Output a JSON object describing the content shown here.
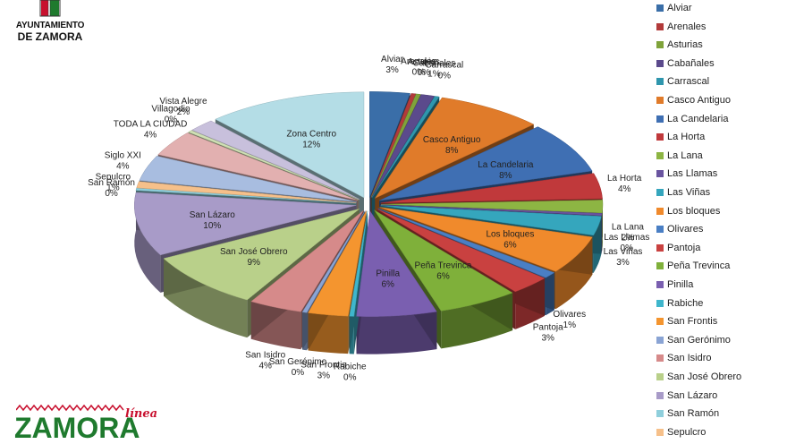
{
  "header": {
    "logo_line1": "AYUNTAMIENTO",
    "logo_line2": "DE ZAMORA"
  },
  "footer_logo": {
    "script_text": "línea",
    "brand_text": "ZAMORA"
  },
  "colors": {
    "logo_green": "#1f7a2e",
    "logo_red": "#c8102e"
  },
  "chart_data": {
    "type": "pie",
    "style": "3d-exploded",
    "legend_position": "right",
    "unit": "%",
    "series": [
      {
        "label": "Alviar",
        "value": 3,
        "display": "3%",
        "color": "#3a6ea8"
      },
      {
        "label": "Arenales",
        "value": 0,
        "display": "0%",
        "color": "#b23a3a"
      },
      {
        "label": "Asturias",
        "value": 0,
        "display": "0%",
        "color": "#7fa33a"
      },
      {
        "label": "Cabañales",
        "value": 1,
        "display": "1%",
        "color": "#5b4a8c"
      },
      {
        "label": "Carrascal",
        "value": 0,
        "display": "0%",
        "color": "#2f96ad"
      },
      {
        "label": "Casco Antiguo",
        "value": 8,
        "display": "8%",
        "color": "#e07b2a"
      },
      {
        "label": "La Candelaria",
        "value": 8,
        "display": "8%",
        "color": "#3f6fb3"
      },
      {
        "label": "La Horta",
        "value": 4,
        "display": "4%",
        "color": "#c0393b"
      },
      {
        "label": "La Lana",
        "value": 2,
        "display": "2%",
        "color": "#8db543"
      },
      {
        "label": "Las Llamas",
        "value": 0,
        "display": "0%",
        "color": "#6a55a0"
      },
      {
        "label": "Las Viñas",
        "value": 3,
        "display": "3%",
        "color": "#35a6bd"
      },
      {
        "label": "Los bloques",
        "value": 6,
        "display": "6%",
        "color": "#f08a2c"
      },
      {
        "label": "Olivares",
        "value": 1,
        "display": "1%",
        "color": "#4a7fc4"
      },
      {
        "label": "Pantoja",
        "value": 3,
        "display": "3%",
        "color": "#c94140"
      },
      {
        "label": "Peña Trevinca",
        "value": 6,
        "display": "6%",
        "color": "#7fb03a"
      },
      {
        "label": "Pinilla",
        "value": 6,
        "display": "6%",
        "color": "#7a5fb0"
      },
      {
        "label": "Rabiche",
        "value": 0,
        "display": "0%",
        "color": "#3fb6cc"
      },
      {
        "label": "San Frontis",
        "value": 3,
        "display": "3%",
        "color": "#f4952f"
      },
      {
        "label": "San Gerónimo",
        "value": 0,
        "display": "0%",
        "color": "#8aa4d4"
      },
      {
        "label": "San Isidro",
        "value": 4,
        "display": "4%",
        "color": "#d68a8a"
      },
      {
        "label": "San José Obrero",
        "value": 9,
        "display": "9%",
        "color": "#b9d08a"
      },
      {
        "label": "San Lázaro",
        "value": 10,
        "display": "10%",
        "color": "#a89bc8"
      },
      {
        "label": "San Ramón",
        "value": 0,
        "display": "0%",
        "color": "#8fcfdc"
      },
      {
        "label": "Sepulcro",
        "value": 1,
        "display": "1%",
        "color": "#f6c08a"
      },
      {
        "label": "Siglo XXI",
        "value": 4,
        "display": "4%",
        "color": "#a8bde0"
      },
      {
        "label": "TODA LA CIUDAD",
        "value": 4,
        "display": "4%",
        "color": "#e2b0b0"
      },
      {
        "label": "Villagodio",
        "value": 0,
        "display": "0%",
        "color": "#cfe0b4"
      },
      {
        "label": "Vista Alegre",
        "value": 2,
        "display": "2%",
        "color": "#c8c0dc"
      },
      {
        "label": "Zona Centro",
        "value": 12,
        "display": "12%",
        "color": "#b4dde6"
      }
    ],
    "legend_visible": [
      "Alviar",
      "Arenales",
      "Asturias",
      "Cabañales",
      "Carrascal",
      "Casco Antiguo",
      "La Candelaria",
      "La Horta",
      "La Lana",
      "Las Llamas",
      "Las Viñas",
      "Los bloques",
      "Olivares",
      "Pantoja",
      "Peña Trevinca",
      "Pinilla",
      "Rabiche",
      "San Frontis",
      "San Gerónimo",
      "San Isidro",
      "San José Obrero",
      "San Lázaro",
      "San Ramón",
      "Sepulcro"
    ]
  }
}
